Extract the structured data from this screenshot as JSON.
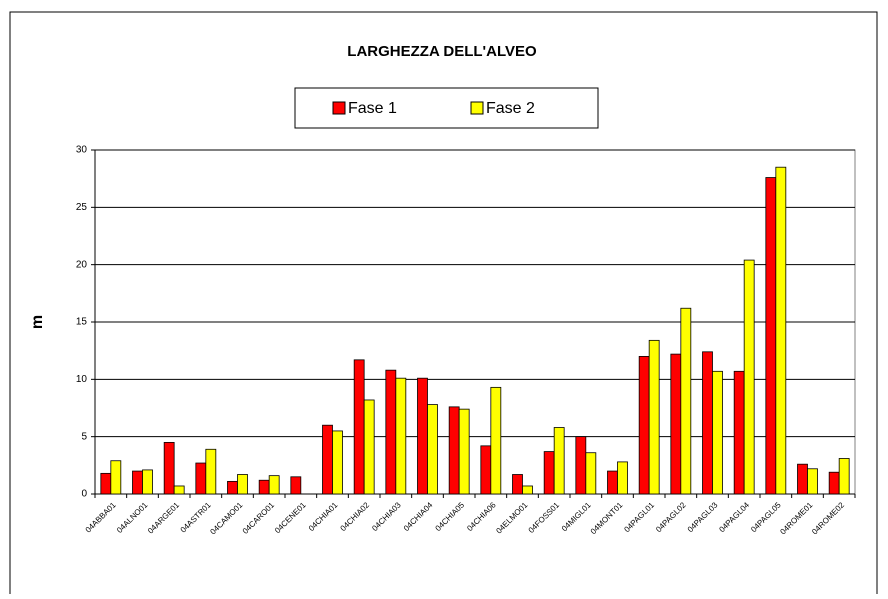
{
  "chart_data": {
    "type": "bar",
    "title": "LARGHEZZA DELL'ALVEO",
    "y_label": "m",
    "categories": [
      "04ABBA01",
      "04ALNO01",
      "04ARGE01",
      "04ASTR01",
      "04CAMO01",
      "04CARO01",
      "04CENE01",
      "04CHIA01",
      "04CHIA02",
      "04CHIA03",
      "04CHIA04",
      "04CHIA05",
      "04CHIA06",
      "04ELMO01",
      "04FOSS01",
      "04MIGL01",
      "04MONT01",
      "04PAGL01",
      "04PAGL02",
      "04PAGL03",
      "04PAGL04",
      "04PAGL05",
      "04ROME01",
      "04ROME02"
    ],
    "series": [
      {
        "name": "Fase 1",
        "color": "#ff0000",
        "values": [
          1.8,
          2.0,
          4.5,
          2.7,
          1.1,
          1.2,
          1.5,
          6.0,
          11.7,
          10.8,
          10.1,
          7.6,
          4.2,
          1.7,
          3.7,
          5.0,
          2.0,
          12.0,
          12.2,
          12.4,
          10.7,
          27.6,
          2.6,
          1.9
        ]
      },
      {
        "name": "Fase 2",
        "color": "#ffff00",
        "values": [
          2.9,
          2.1,
          0.7,
          3.9,
          1.7,
          1.6,
          null,
          5.5,
          8.2,
          10.1,
          7.8,
          7.4,
          9.3,
          0.7,
          5.8,
          3.6,
          2.8,
          13.4,
          16.2,
          10.7,
          20.4,
          28.5,
          2.2,
          3.1
        ]
      }
    ],
    "ylim": [
      0,
      30
    ],
    "yticks": [
      0,
      5,
      10,
      15,
      20,
      25,
      30
    ],
    "grid": true,
    "legend": "top"
  }
}
